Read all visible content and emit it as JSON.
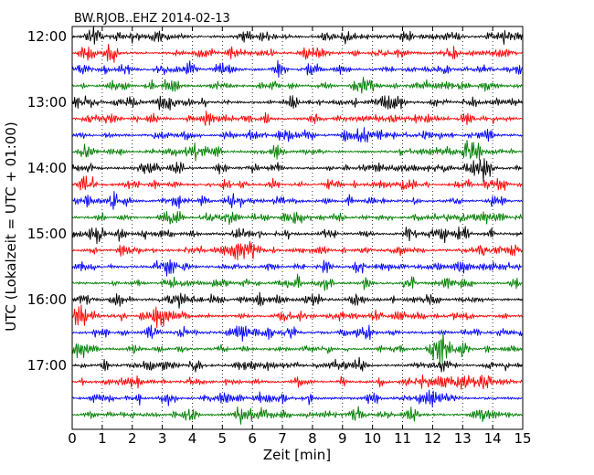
{
  "chart_data": {
    "type": "line",
    "title": "BW.RJOB..EHZ 2014-02-13",
    "xlabel": "Zeit  [min]",
    "ylabel": "UTC (Lokalzeit = UTC + 01:00)",
    "xlim": [
      0,
      15
    ],
    "xticks": [
      "0",
      "1",
      "2",
      "3",
      "4",
      "5",
      "6",
      "7",
      "8",
      "9",
      "10",
      "11",
      "12",
      "13",
      "14",
      "15"
    ],
    "yticks": [
      "12:00",
      "13:00",
      "14:00",
      "15:00",
      "16:00",
      "17:00"
    ],
    "grid": "vertical-dotted",
    "trace_colors": [
      "#000000",
      "#ff0000",
      "#0000ff",
      "#007f00"
    ],
    "trace_count": 24,
    "trace_interval_minutes": 15
  }
}
